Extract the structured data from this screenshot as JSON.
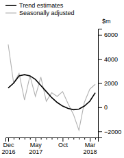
{
  "chart_data": {
    "type": "line",
    "y_label": "$m",
    "categories": [
      "Dec\n2016",
      null,
      null,
      null,
      null,
      "May\n2017",
      null,
      null,
      null,
      null,
      "Oct",
      null,
      null,
      null,
      null,
      "Mar\n2018",
      null
    ],
    "series": [
      {
        "name": "Trend estimates",
        "color": "#000000",
        "values": [
          1600,
          2000,
          2600,
          2700,
          2600,
          2300,
          1800,
          1300,
          800,
          400,
          100,
          -100,
          -200,
          -150,
          100,
          500,
          1200
        ]
      },
      {
        "name": "Seasonally adjusted",
        "color": "#b0b0b0",
        "values": [
          5200,
          2000,
          2800,
          600,
          2600,
          900,
          2500,
          500,
          1200,
          900,
          1300,
          300,
          -600,
          -1900,
          400,
          1500,
          1900
        ]
      }
    ],
    "ylim": [
      -2500,
      6500
    ],
    "yticks": [
      {
        "value": -2000,
        "label": "−2000"
      },
      0,
      2000,
      4000,
      6000
    ],
    "legend": "upper left"
  }
}
